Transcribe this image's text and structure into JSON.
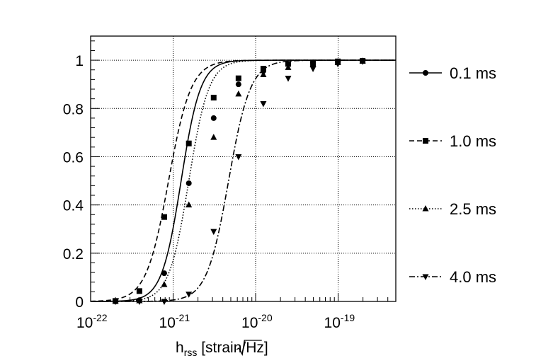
{
  "chart_data": {
    "type": "line",
    "title": "",
    "xlabel": {
      "main": "h",
      "sub": "rss",
      "rest": " [strain/",
      "unit": "Hz",
      "close": "]"
    },
    "ylabel": "",
    "xscale": "log",
    "xlim": [
      1e-22,
      5e-19
    ],
    "ylim": [
      0,
      1.1
    ],
    "grid": true,
    "legend_position": "right",
    "x_ticks": [
      {
        "value": 1e-22,
        "base": "10",
        "exp": "-22"
      },
      {
        "value": 1e-21,
        "base": "10",
        "exp": "-21"
      },
      {
        "value": 1e-20,
        "base": "10",
        "exp": "-20"
      },
      {
        "value": 1e-19,
        "base": "10",
        "exp": "-19"
      }
    ],
    "y_ticks": [
      {
        "value": 0,
        "label": "0"
      },
      {
        "value": 0.2,
        "label": "0.2"
      },
      {
        "value": 0.4,
        "label": "0.4"
      },
      {
        "value": 0.6,
        "label": "0.6"
      },
      {
        "value": 0.8,
        "label": "0.8"
      },
      {
        "value": 1,
        "label": "1"
      }
    ],
    "series": [
      {
        "name": "0.1 ms",
        "marker": "circle",
        "dash": "",
        "fit": {
          "x50": 1.25e-21,
          "slope": 3.7
        },
        "points": [
          [
            2e-22,
            0.0
          ],
          [
            3.9e-22,
            0.005
          ],
          [
            7.8e-22,
            0.117
          ],
          [
            1.55e-21,
            0.49
          ],
          [
            3.1e-21,
            0.76
          ],
          [
            6.2e-21,
            0.9
          ],
          [
            1.24e-20,
            0.955
          ],
          [
            2.48e-20,
            0.985
          ],
          [
            4.96e-20,
            0.99
          ],
          [
            9.92e-20,
            0.995
          ],
          [
            1.98e-19,
            0.997
          ]
        ]
      },
      {
        "name": "1.0 ms",
        "marker": "square",
        "dash": "7,4",
        "fit": {
          "x50": 8.8e-22,
          "slope": 3.2
        },
        "points": [
          [
            2e-22,
            0.002
          ],
          [
            3.9e-22,
            0.043
          ],
          [
            7.8e-22,
            0.35
          ],
          [
            1.55e-21,
            0.655
          ],
          [
            3.1e-21,
            0.845
          ],
          [
            6.2e-21,
            0.925
          ],
          [
            1.24e-20,
            0.965
          ],
          [
            2.48e-20,
            0.985
          ],
          [
            4.96e-20,
            0.99
          ],
          [
            9.92e-20,
            0.995
          ],
          [
            1.98e-19,
            0.997
          ]
        ]
      },
      {
        "name": "2.5 ms",
        "marker": "triangle-up",
        "dash": "1.5,2.5",
        "fit": {
          "x50": 1.55e-21,
          "slope": 3.6
        },
        "points": [
          [
            2e-22,
            0.0
          ],
          [
            3.9e-22,
            0.003
          ],
          [
            7.8e-22,
            0.07
          ],
          [
            1.55e-21,
            0.4
          ],
          [
            3.1e-21,
            0.68
          ],
          [
            6.2e-21,
            0.86
          ],
          [
            1.24e-20,
            0.94
          ],
          [
            2.48e-20,
            0.97
          ],
          [
            4.96e-20,
            0.985
          ],
          [
            9.92e-20,
            0.99
          ],
          [
            1.98e-19,
            0.997
          ]
        ]
      },
      {
        "name": "4.0 ms",
        "marker": "triangle-down",
        "dash": "8,3,2,3",
        "fit": {
          "x50": 4.7e-21,
          "slope": 3.3
        },
        "points": [
          [
            2e-22,
            0.0
          ],
          [
            3.9e-22,
            0.0
          ],
          [
            7.8e-22,
            0.0
          ],
          [
            1.55e-21,
            0.03
          ],
          [
            3.1e-21,
            0.29
          ],
          [
            6.2e-21,
            0.6
          ],
          [
            1.24e-20,
            0.82
          ],
          [
            2.48e-20,
            0.925
          ],
          [
            4.96e-20,
            0.965
          ],
          [
            9.92e-20,
            0.985
          ],
          [
            1.98e-19,
            0.995
          ]
        ]
      }
    ]
  }
}
